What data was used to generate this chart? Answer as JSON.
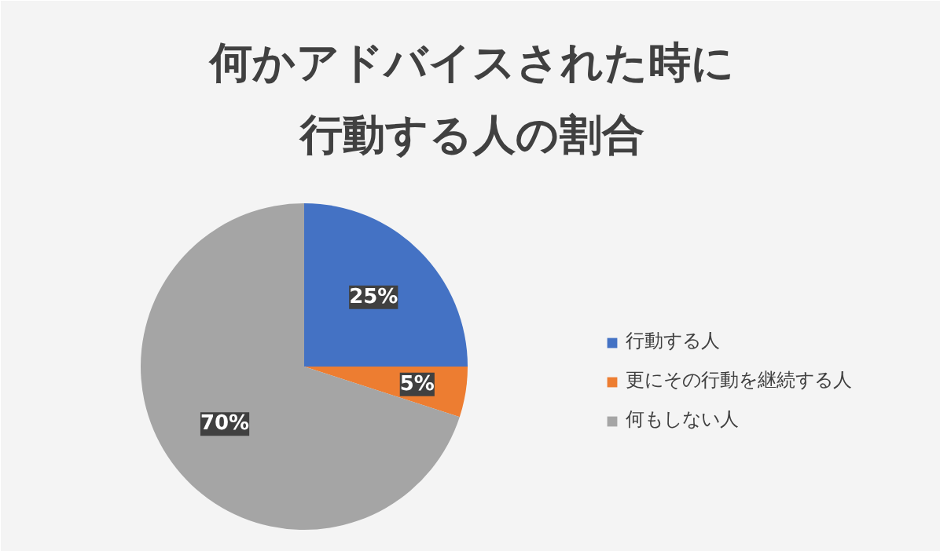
{
  "chart_data": {
    "type": "pie",
    "title": "何かアドバイスされた時に",
    "subtitle": "行動する人の割合",
    "categories": [
      "行動する人",
      "更にその行動を継続する人",
      "何もしない人"
    ],
    "values": [
      25,
      5,
      70
    ],
    "colors": [
      "#4472c4",
      "#ed7d31",
      "#a5a5a5"
    ],
    "value_labels": [
      "25%",
      "5%",
      "70%"
    ],
    "legend": "right"
  }
}
